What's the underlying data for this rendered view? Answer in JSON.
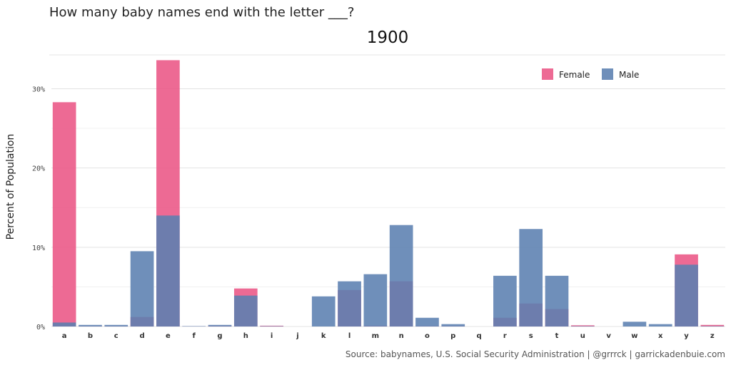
{
  "chart_data": {
    "type": "bar",
    "title": "How many baby names end with the letter ___?",
    "subtitle": "1900",
    "ylabel": "Percent of Population",
    "xlabel": "",
    "ylim": [
      0,
      34
    ],
    "yticks": [
      0,
      10,
      20,
      30
    ],
    "ytick_labels": [
      "0%",
      "10%",
      "20%",
      "30%"
    ],
    "grid": true,
    "legend_position": "top-right",
    "categories": [
      "a",
      "b",
      "c",
      "d",
      "e",
      "f",
      "g",
      "h",
      "i",
      "j",
      "k",
      "l",
      "m",
      "n",
      "o",
      "p",
      "q",
      "r",
      "s",
      "t",
      "u",
      "v",
      "w",
      "x",
      "y",
      "z"
    ],
    "series": [
      {
        "name": "Female",
        "color": "#eb5585",
        "values": [
          28.3,
          0.05,
          0.05,
          1.2,
          33.6,
          0.03,
          0.1,
          4.8,
          0.1,
          0,
          0,
          4.6,
          0.1,
          5.7,
          0.05,
          0.05,
          0,
          1.1,
          2.9,
          2.2,
          0.15,
          0,
          0,
          0,
          9.1,
          0.2
        ]
      },
      {
        "name": "Male",
        "color": "#5b7fb1",
        "values": [
          0.5,
          0.2,
          0.2,
          9.5,
          14.0,
          0.05,
          0.2,
          3.9,
          0.05,
          0,
          3.8,
          5.7,
          6.6,
          12.8,
          1.1,
          0.3,
          0,
          6.4,
          12.3,
          6.4,
          0.05,
          0,
          0.6,
          0.3,
          7.8,
          0.05
        ]
      }
    ],
    "source": "Source: babynames, U.S. Social Security Administration | @grrrck | garrickadenbuie.com"
  }
}
